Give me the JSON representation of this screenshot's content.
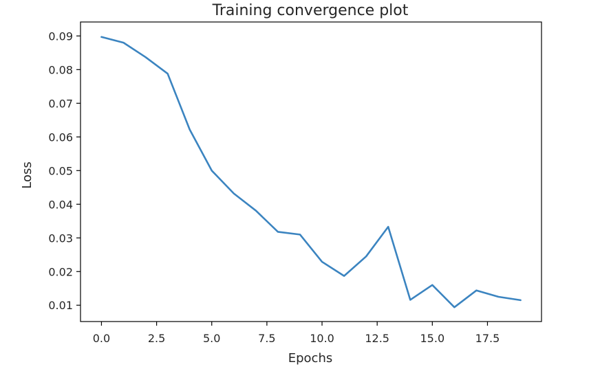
{
  "chart_data": {
    "type": "line",
    "title": "Training convergence plot",
    "xlabel": "Epochs",
    "ylabel": "Loss",
    "xlim": [
      -0.95,
      19.95
    ],
    "ylim": [
      0.00515,
      0.09415
    ],
    "grid": false,
    "x_ticks": [
      0.0,
      2.5,
      5.0,
      7.5,
      10.0,
      12.5,
      15.0,
      17.5
    ],
    "x_tick_labels": [
      "0.0",
      "2.5",
      "5.0",
      "7.5",
      "10.0",
      "12.5",
      "15.0",
      "17.5"
    ],
    "y_ticks": [
      0.01,
      0.02,
      0.03,
      0.04,
      0.05,
      0.06,
      0.07,
      0.08,
      0.09
    ],
    "y_tick_labels": [
      "0.01",
      "0.02",
      "0.03",
      "0.04",
      "0.05",
      "0.06",
      "0.07",
      "0.08",
      "0.09"
    ],
    "series": [
      {
        "color": "#3b84c0",
        "x": [
          0,
          1,
          2,
          3,
          4,
          5,
          6,
          7,
          8,
          9,
          10,
          11,
          12,
          13,
          14,
          15,
          16,
          17,
          18,
          19
        ],
        "values": [
          0.0897,
          0.088,
          0.0837,
          0.0788,
          0.0622,
          0.05,
          0.0432,
          0.0381,
          0.0318,
          0.031,
          0.0229,
          0.0187,
          0.0245,
          0.0333,
          0.0116,
          0.016,
          0.0094,
          0.0144,
          0.0125,
          0.0115
        ]
      }
    ]
  }
}
